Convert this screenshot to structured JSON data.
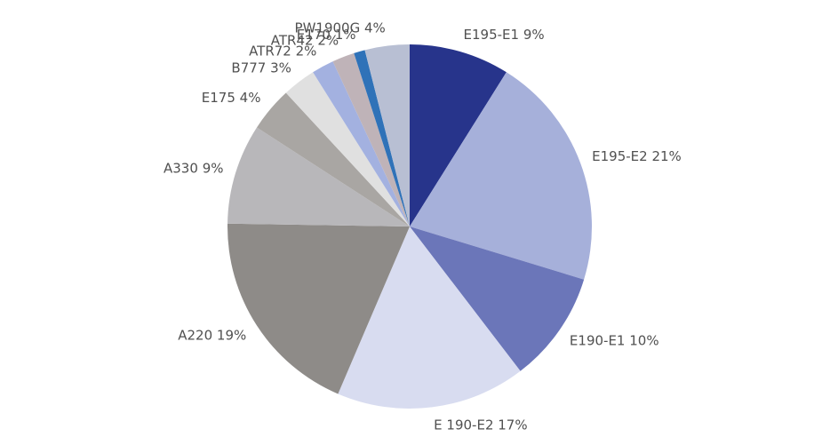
{
  "chart_data": {
    "type": "pie",
    "categories": [
      "E195-E1",
      "E195-E2",
      "E190-E1",
      "E 190-E2",
      "A220",
      "A330",
      "E175",
      "B777",
      "ATR72",
      "ATR42",
      "E170",
      "PW1900G"
    ],
    "values": [
      9,
      21,
      10,
      17,
      19,
      9,
      4,
      3,
      2,
      2,
      1,
      4
    ],
    "value_labels": [
      "9%",
      "21%",
      "10%",
      "17%",
      "19%",
      "9%",
      "4%",
      "3%",
      "2%",
      "2%",
      "1%",
      "4%"
    ],
    "colors": [
      "#27348b",
      "#a6b0da",
      "#6b76b9",
      "#d8dcf0",
      "#8e8b88",
      "#b8b7ba",
      "#a9a6a3",
      "#e0e0e0",
      "#a3b1e0",
      "#bfb3b8",
      "#2f72b8",
      "#b8bfd3"
    ]
  }
}
